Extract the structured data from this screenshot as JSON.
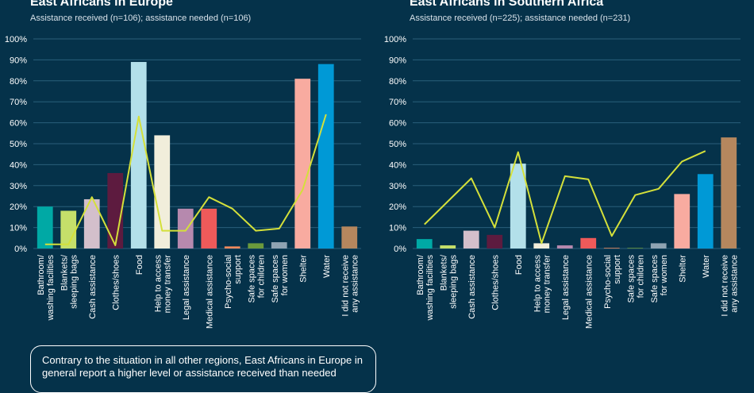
{
  "left_panel": {
    "title": "East Africans in Europe",
    "subtitle": "Assistance received (n=106); assistance needed (n=106)"
  },
  "right_panel": {
    "title": "East Africans in Southern Africa",
    "subtitle": "Assistance received (n=225); assistance needed (n=231)"
  },
  "callout": {
    "text": "Contrary to the situation in all other regions, East Africans in Europe in general report a higher level or assistance received than needed"
  },
  "colors": {
    "background": "#05324a",
    "gridline": "#2a5f7a",
    "needed_line": "#d4e03a",
    "bars": [
      "#00a9a5",
      "#c5df6a",
      "#d3bfcb",
      "#5d1b3f",
      "#b3e0ea",
      "#f1eedb",
      "#b689ae",
      "#ef5a5a",
      "#f08a5d",
      "#6b9a3c",
      "#8fa4b3",
      "#f8aba0",
      "#0099d6",
      "#b5875e"
    ]
  },
  "chart_data": [
    {
      "type": "bar",
      "title": "East Africans in Europe",
      "subtitle": "Assistance received (n=106); assistance needed (n=106)",
      "categories": [
        [
          "Bathroom/",
          "washing facilities"
        ],
        [
          "Blankets/",
          "sleeping bags"
        ],
        [
          "Cash assistance"
        ],
        [
          "Clothes/shoes"
        ],
        [
          "Food"
        ],
        [
          "Help to access",
          "money transfer"
        ],
        [
          "Legal assistance"
        ],
        [
          "Medical assistance"
        ],
        [
          "Psycho-social",
          "support"
        ],
        [
          "Safe spaces",
          "for children"
        ],
        [
          "Safe spaces",
          "for women"
        ],
        [
          "Shelter"
        ],
        [
          "Water"
        ],
        [
          "I did not receive",
          "any assistance"
        ]
      ],
      "y_ticks": [
        "0%",
        "10%",
        "20%",
        "30%",
        "40%",
        "50%",
        "60%",
        "70%",
        "80%",
        "90%",
        "100%"
      ],
      "ylim": [
        0,
        100
      ],
      "series": [
        {
          "values": [
            20,
            18,
            23.5,
            36,
            89,
            54,
            19,
            19,
            1,
            2.5,
            3,
            81,
            88,
            10.5
          ]
        },
        {
          "values": [
            2,
            2,
            24.5,
            1.5,
            63,
            8.5,
            8.5,
            24.5,
            19,
            8.5,
            9.5,
            28,
            64,
            null
          ]
        }
      ]
    },
    {
      "type": "bar",
      "title": "East Africans in Southern Africa",
      "subtitle": "Assistance received (n=225); assistance needed (n=231)",
      "categories": [
        [
          "Bathroom/",
          "washing facilities"
        ],
        [
          "Blankets/",
          "sleeping bags"
        ],
        [
          "Cash assistance"
        ],
        [
          "Clothes/shoes"
        ],
        [
          "Food"
        ],
        [
          "Help to access",
          "money transfer"
        ],
        [
          "Legal assistance"
        ],
        [
          "Medical assistance"
        ],
        [
          "Psycho-social",
          "support"
        ],
        [
          "Safe spaces",
          "for children"
        ],
        [
          "Safe spaces",
          "for women"
        ],
        [
          "Shelter"
        ],
        [
          "Water"
        ],
        [
          "I did not receive",
          "any assistance"
        ]
      ],
      "y_ticks": [
        "0%",
        "10%",
        "20%",
        "30%",
        "40%",
        "50%",
        "60%",
        "70%",
        "80%",
        "90%",
        "100%"
      ],
      "ylim": [
        0,
        100
      ],
      "series": [
        {
          "values": [
            4.5,
            1.5,
            8.5,
            6.5,
            40.5,
            2.5,
            1.5,
            5,
            0.3,
            0.3,
            2.5,
            26,
            35.5,
            53
          ]
        },
        {
          "values": [
            11.5,
            22.5,
            33.5,
            10,
            46,
            2.5,
            34.5,
            33,
            6,
            25.5,
            28.5,
            41.5,
            46.5,
            null
          ]
        }
      ]
    }
  ]
}
